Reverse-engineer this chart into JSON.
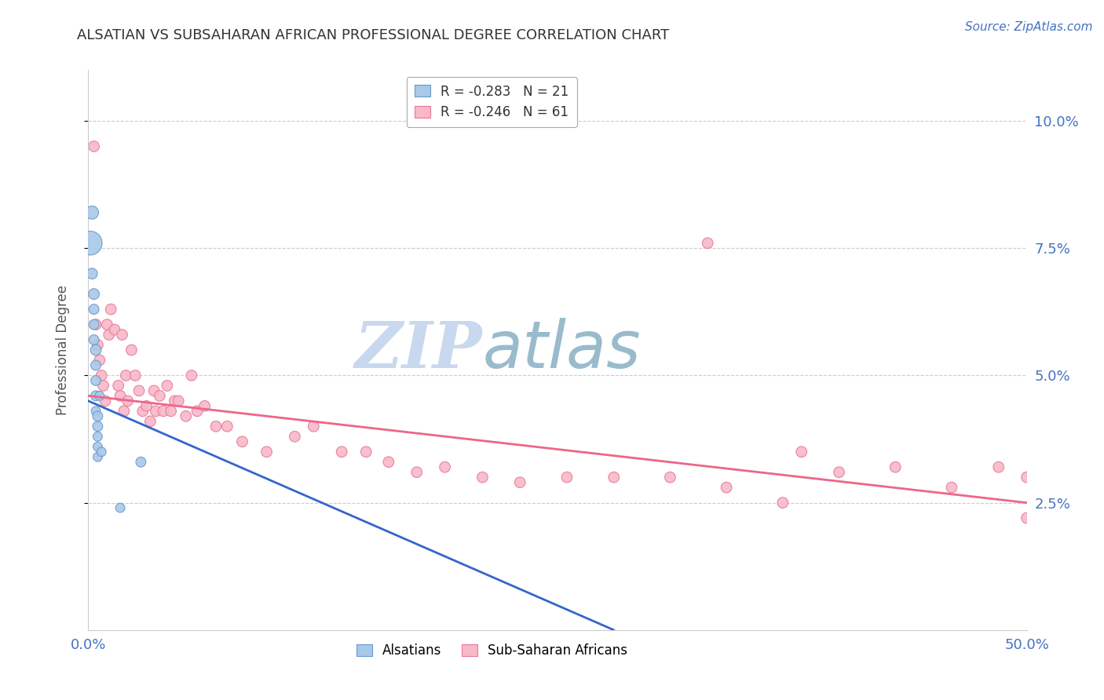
{
  "title": "ALSATIAN VS SUBSAHARAN AFRICAN PROFESSIONAL DEGREE CORRELATION CHART",
  "source": "Source: ZipAtlas.com",
  "ylabel": "Professional Degree",
  "right_yticks": [
    "10.0%",
    "7.5%",
    "5.0%",
    "2.5%"
  ],
  "right_ytick_vals": [
    0.1,
    0.075,
    0.05,
    0.025
  ],
  "xlim": [
    0.0,
    0.5
  ],
  "ylim": [
    0.0,
    0.11
  ],
  "legend_r_als": "R = -0.283",
  "legend_n_als": "N = 21",
  "legend_r_sub": "R = -0.246",
  "legend_n_sub": "N = 61",
  "alsatian_x": [
    0.001,
    0.002,
    0.002,
    0.003,
    0.003,
    0.003,
    0.003,
    0.004,
    0.004,
    0.004,
    0.004,
    0.004,
    0.005,
    0.005,
    0.005,
    0.005,
    0.005,
    0.006,
    0.007,
    0.017,
    0.028
  ],
  "alsatian_y": [
    0.076,
    0.082,
    0.07,
    0.066,
    0.063,
    0.06,
    0.057,
    0.055,
    0.052,
    0.049,
    0.046,
    0.043,
    0.042,
    0.04,
    0.038,
    0.036,
    0.034,
    0.046,
    0.035,
    0.024,
    0.033
  ],
  "alsatian_sizes": [
    400,
    120,
    80,
    80,
    70,
    70,
    70,
    80,
    70,
    70,
    70,
    60,
    70,
    70,
    60,
    60,
    60,
    60,
    60,
    60,
    70
  ],
  "subsaharan_x": [
    0.003,
    0.004,
    0.005,
    0.006,
    0.007,
    0.008,
    0.009,
    0.01,
    0.011,
    0.012,
    0.014,
    0.016,
    0.017,
    0.018,
    0.019,
    0.02,
    0.021,
    0.023,
    0.025,
    0.027,
    0.029,
    0.031,
    0.033,
    0.035,
    0.036,
    0.038,
    0.04,
    0.042,
    0.044,
    0.046,
    0.048,
    0.052,
    0.055,
    0.058,
    0.062,
    0.068,
    0.074,
    0.082,
    0.095,
    0.11,
    0.12,
    0.135,
    0.148,
    0.16,
    0.175,
    0.19,
    0.21,
    0.23,
    0.255,
    0.28,
    0.31,
    0.34,
    0.37,
    0.4,
    0.43,
    0.46,
    0.485,
    0.5,
    0.33,
    0.38,
    0.5
  ],
  "subsaharan_y": [
    0.095,
    0.06,
    0.056,
    0.053,
    0.05,
    0.048,
    0.045,
    0.06,
    0.058,
    0.063,
    0.059,
    0.048,
    0.046,
    0.058,
    0.043,
    0.05,
    0.045,
    0.055,
    0.05,
    0.047,
    0.043,
    0.044,
    0.041,
    0.047,
    0.043,
    0.046,
    0.043,
    0.048,
    0.043,
    0.045,
    0.045,
    0.042,
    0.05,
    0.043,
    0.044,
    0.04,
    0.04,
    0.037,
    0.035,
    0.038,
    0.04,
    0.035,
    0.035,
    0.033,
    0.031,
    0.032,
    0.03,
    0.029,
    0.03,
    0.03,
    0.03,
    0.028,
    0.025,
    0.031,
    0.032,
    0.028,
    0.032,
    0.03,
    0.076,
    0.035,
    0.022
  ],
  "subsaharan_sizes": [
    80,
    80,
    80,
    80,
    80,
    80,
    80,
    80,
    80,
    80,
    80,
    80,
    80,
    80,
    80,
    80,
    80,
    80,
    80,
    80,
    80,
    80,
    80,
    80,
    80,
    80,
    80,
    80,
    80,
    80,
    80,
    80,
    80,
    80,
    80,
    80,
    80,
    80,
    80,
    80,
    80,
    80,
    80,
    80,
    80,
    80,
    80,
    80,
    80,
    80,
    80,
    80,
    80,
    80,
    80,
    80,
    80,
    80,
    80,
    80,
    80
  ],
  "alsatian_color": "#aac8e8",
  "alsatian_edge": "#6699cc",
  "subsaharan_color": "#f8b8c8",
  "subsaharan_edge": "#e87898",
  "trend_alsatian_solid_color": "#3366cc",
  "trend_alsatian_dashed_color": "#99bbdd",
  "trend_subsaharan_color": "#ee6688",
  "background_color": "#ffffff",
  "grid_color": "#cccccc",
  "title_color": "#333333",
  "axis_label_color": "#4472c4",
  "watermark_zip_color": "#c8d8ee",
  "watermark_atlas_color": "#99bbcc"
}
